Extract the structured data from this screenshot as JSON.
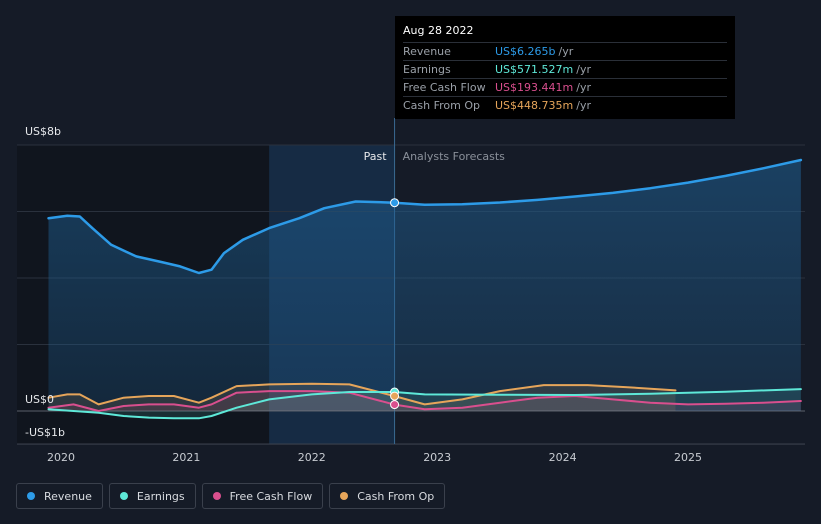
{
  "colors": {
    "revenue": "#2d9be8",
    "earnings": "#5ee8d8",
    "free_cash_flow": "#d94f8e",
    "cash_from_op": "#e6a55a",
    "background": "#151b27"
  },
  "tooltip": {
    "date": "Aug 28 2022",
    "rows": [
      {
        "label": "Revenue",
        "value": "US$6.265b",
        "unit": "/yr",
        "color": "#2d9be8"
      },
      {
        "label": "Earnings",
        "value": "US$571.527m",
        "unit": "/yr",
        "color": "#5ee8d8"
      },
      {
        "label": "Free Cash Flow",
        "value": "US$193.441m",
        "unit": "/yr",
        "color": "#d94f8e"
      },
      {
        "label": "Cash From Op",
        "value": "US$448.735m",
        "unit": "/yr",
        "color": "#e6a55a"
      }
    ]
  },
  "legend": [
    {
      "label": "Revenue",
      "color": "#2d9be8"
    },
    {
      "label": "Earnings",
      "color": "#5ee8d8"
    },
    {
      "label": "Free Cash Flow",
      "color": "#d94f8e"
    },
    {
      "label": "Cash From Op",
      "color": "#e6a55a"
    }
  ],
  "chart_data": {
    "type": "line",
    "title": "",
    "ylabel": "",
    "xlabel": "",
    "y_tick_labels": [
      "US$8b",
      "US$0",
      "-US$1b"
    ],
    "x_tick_labels": [
      "2020",
      "2021",
      "2022",
      "2023",
      "2024",
      "2025"
    ],
    "ylim": [
      -1,
      8
    ],
    "xlim": [
      2019.7,
      2025.9
    ],
    "past_label": "Past",
    "forecast_label": "Analysts Forecasts",
    "divider_x": 2022.66,
    "highlight_start_x": 2021.66,
    "grid": true,
    "legend_position": "bottom",
    "series": [
      {
        "name": "Revenue",
        "key": "revenue",
        "x": [
          2019.9,
          2020.05,
          2020.15,
          2020.25,
          2020.4,
          2020.6,
          2020.8,
          2020.95,
          2021.1,
          2021.2,
          2021.3,
          2021.45,
          2021.66,
          2021.9,
          2022.1,
          2022.35,
          2022.66,
          2022.9,
          2023.2,
          2023.5,
          2023.8,
          2024.1,
          2024.4,
          2024.7,
          2025.0,
          2025.3,
          2025.6,
          2025.9
        ],
        "y": [
          5.8,
          5.87,
          5.85,
          5.5,
          5.0,
          4.65,
          4.48,
          4.35,
          4.15,
          4.25,
          4.75,
          5.15,
          5.5,
          5.8,
          6.1,
          6.3,
          6.265,
          6.2,
          6.22,
          6.27,
          6.35,
          6.45,
          6.56,
          6.7,
          6.87,
          7.07,
          7.3,
          7.55
        ]
      },
      {
        "name": "Earnings",
        "key": "earnings",
        "x": [
          2019.9,
          2020.1,
          2020.3,
          2020.5,
          2020.7,
          2020.9,
          2021.1,
          2021.2,
          2021.4,
          2021.66,
          2022.0,
          2022.3,
          2022.66,
          2022.9,
          2023.5,
          2024.1,
          2024.7,
          2025.3,
          2025.9
        ],
        "y": [
          0.05,
          0.0,
          -0.05,
          -0.15,
          -0.2,
          -0.22,
          -0.22,
          -0.15,
          0.1,
          0.35,
          0.5,
          0.57,
          0.57,
          0.5,
          0.49,
          0.48,
          0.52,
          0.58,
          0.66
        ]
      },
      {
        "name": "Free Cash Flow",
        "key": "free_cash_flow",
        "x": [
          2019.9,
          2020.1,
          2020.3,
          2020.5,
          2020.7,
          2020.9,
          2021.1,
          2021.2,
          2021.4,
          2021.66,
          2022.0,
          2022.3,
          2022.66,
          2022.9,
          2023.2,
          2023.5,
          2023.8,
          2024.1,
          2024.4,
          2024.7,
          2025.0,
          2025.3,
          2025.6,
          2025.9
        ],
        "y": [
          0.1,
          0.2,
          0.0,
          0.15,
          0.2,
          0.2,
          0.1,
          0.2,
          0.55,
          0.6,
          0.6,
          0.55,
          0.193,
          0.05,
          0.1,
          0.25,
          0.4,
          0.45,
          0.35,
          0.25,
          0.2,
          0.22,
          0.25,
          0.3
        ]
      },
      {
        "name": "Cash From Op",
        "key": "cash_from_op",
        "x": [
          2019.9,
          2020.05,
          2020.15,
          2020.3,
          2020.5,
          2020.7,
          2020.9,
          2021.1,
          2021.2,
          2021.4,
          2021.66,
          2022.0,
          2022.3,
          2022.66,
          2022.9,
          2023.2,
          2023.5,
          2023.85,
          2024.2,
          2024.5,
          2024.9
        ],
        "y": [
          0.4,
          0.5,
          0.5,
          0.2,
          0.4,
          0.45,
          0.45,
          0.25,
          0.4,
          0.75,
          0.8,
          0.82,
          0.8,
          0.449,
          0.2,
          0.35,
          0.6,
          0.78,
          0.78,
          0.72,
          0.62
        ]
      }
    ]
  }
}
